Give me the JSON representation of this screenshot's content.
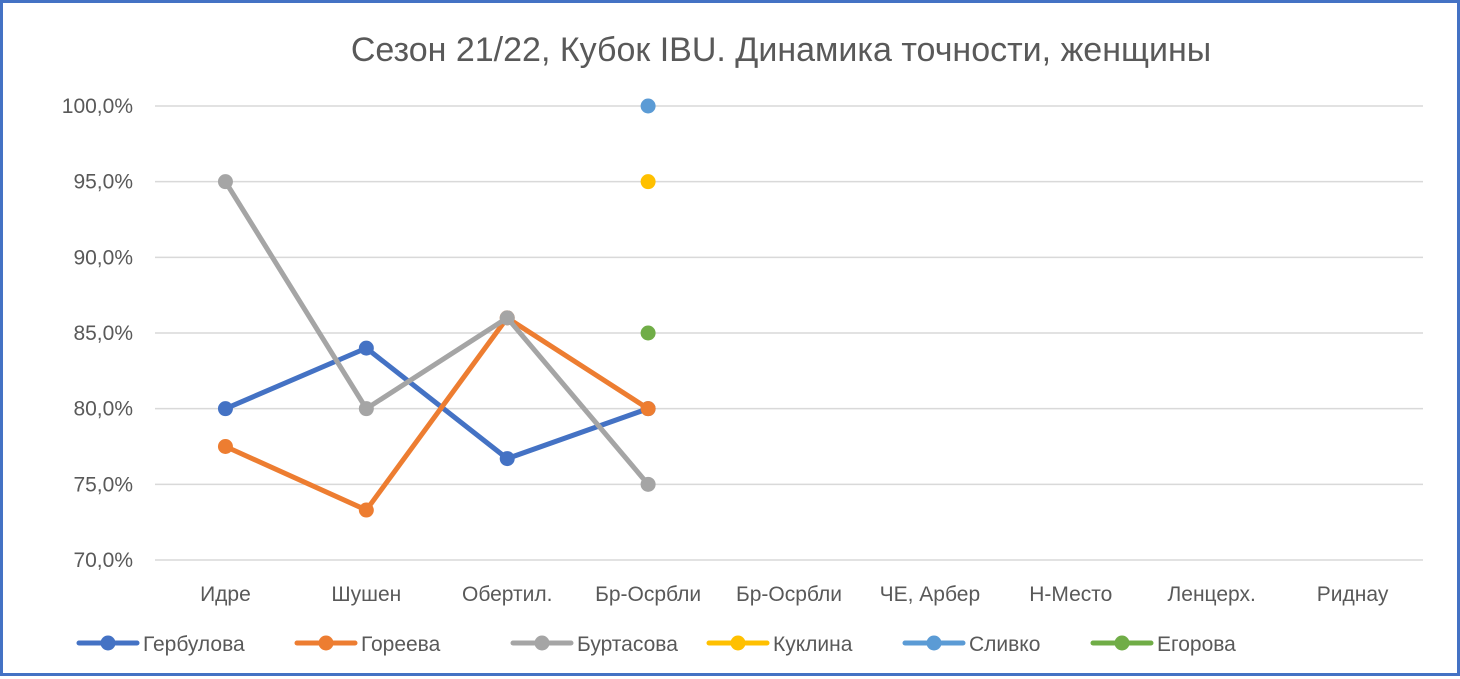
{
  "chart_data": {
    "type": "line",
    "title": "Сезон 21/22, Кубок IBU. Динамика точности, женщины",
    "xlabel": "",
    "ylabel": "",
    "categories": [
      "Идре",
      "Шушен",
      "Обертил.",
      "Бр-Осрбли",
      "Бр-Осрбли",
      "ЧЕ, Арбер",
      "Н-Место",
      "Ленцерх.",
      "Риднау"
    ],
    "ylim": [
      70,
      100
    ],
    "yticks": [
      70,
      75,
      80,
      85,
      90,
      95,
      100
    ],
    "ytick_labels": [
      "70,0%",
      "75,0%",
      "80,0%",
      "85,0%",
      "90,0%",
      "95,0%",
      "100,0%"
    ],
    "grid": true,
    "legend_position": "bottom",
    "series": [
      {
        "name": "Гербулова",
        "color": "#4472c4",
        "values": [
          80.0,
          84.0,
          76.7,
          80.0,
          null,
          null,
          null,
          null,
          null
        ]
      },
      {
        "name": "Гореева",
        "color": "#ed7d31",
        "values": [
          77.5,
          73.3,
          86.0,
          80.0,
          null,
          null,
          null,
          null,
          null
        ]
      },
      {
        "name": "Буртасова",
        "color": "#a5a5a5",
        "values": [
          95.0,
          80.0,
          86.0,
          75.0,
          null,
          null,
          null,
          null,
          null
        ]
      },
      {
        "name": "Куклина",
        "color": "#ffc000",
        "values": [
          null,
          null,
          null,
          95.0,
          null,
          null,
          null,
          null,
          null
        ]
      },
      {
        "name": "Сливко",
        "color": "#5b9bd5",
        "values": [
          null,
          null,
          null,
          100.0,
          null,
          null,
          null,
          null,
          null
        ]
      },
      {
        "name": "Егорова",
        "color": "#70ad47",
        "values": [
          null,
          null,
          null,
          85.0,
          null,
          null,
          null,
          null,
          null
        ]
      }
    ]
  }
}
